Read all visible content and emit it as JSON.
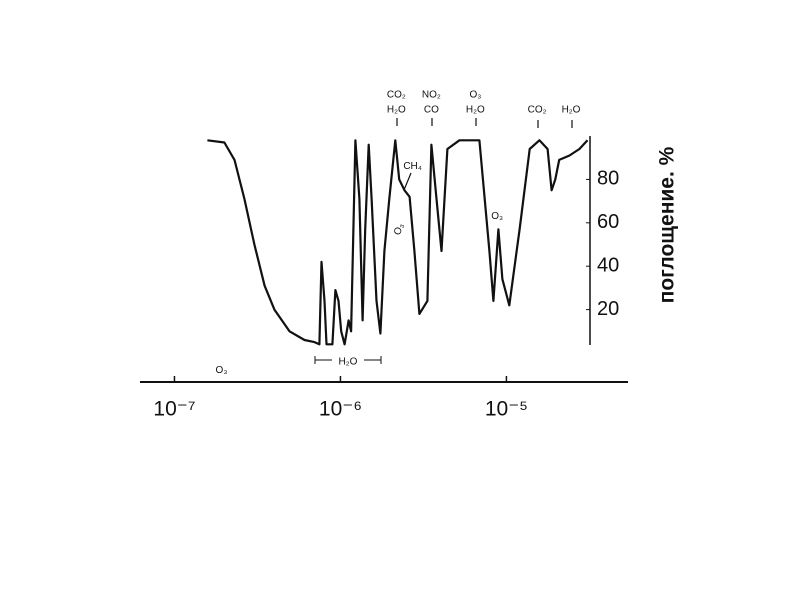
{
  "chart_data": {
    "type": "line",
    "y_label": "поглощение. %",
    "x_log": true,
    "xlim": [
      6.2e-08,
      5.4e-05
    ],
    "xticks": [
      {
        "value": 1e-07,
        "label": "10⁻⁷"
      },
      {
        "value": 1e-06,
        "label": "10⁻⁶"
      },
      {
        "value": 1e-05,
        "label": "10⁻⁵"
      }
    ],
    "ylim": [
      0,
      100
    ],
    "yticks": [
      20,
      40,
      60,
      80
    ],
    "grid": false,
    "color": "#111111",
    "series": [
      {
        "x": [
          1.58e-07,
          2e-07,
          2.3e-07,
          2.64e-07,
          3.03e-07,
          3.49e-07,
          4e-07,
          4.93e-07,
          6.07e-07,
          6.97e-07,
          7.47e-07,
          7.69e-07,
          8.01e-07,
          8.24e-07,
          8.95e-07,
          9.33e-07,
          9.73e-07,
          1.01e-06,
          1.06e-06,
          1.12e-06,
          1.16e-06,
          1.23e-06,
          1.3e-06,
          1.36e-06,
          1.41e-06,
          1.48e-06,
          1.54e-06,
          1.65e-06,
          1.74e-06,
          1.84e-06,
          1.97e-06,
          2.14e-06,
          2.26e-06,
          2.43e-06,
          2.61e-06,
          2.79e-06,
          2.99e-06,
          3.34e-06,
          3.53e-06,
          3.79e-06,
          4.06e-06,
          4.41e-06,
          5.21e-06,
          6.87e-06,
          7.9e-06,
          8.35e-06,
          8.95e-06,
          9.46e-06,
          1.04e-05,
          1.2e-05,
          1.38e-05,
          1.58e-05,
          1.77e-05,
          1.87e-05,
          1.97e-05,
          2.08e-05,
          2.4e-05,
          2.75e-05,
          3.08e-05
        ],
        "values": [
          98,
          97,
          89,
          71,
          50,
          31,
          20,
          10,
          6,
          5,
          4,
          42,
          24,
          4,
          4,
          29,
          24,
          10,
          4,
          15,
          10,
          98,
          71,
          15,
          57,
          96,
          71,
          24,
          9,
          47,
          71,
          98,
          80,
          75,
          72,
          47,
          18,
          24,
          96,
          71,
          47,
          94,
          98,
          98,
          47,
          24,
          57,
          34,
          22,
          57,
          94,
          98,
          94,
          75,
          80,
          89,
          91,
          94,
          98
        ]
      }
    ],
    "annotations": [
      {
        "text": "O₃",
        "x": 1.92e-07,
        "y": -8
      },
      {
        "text": "H₂O",
        "x": 1.11e-06,
        "y": -4
      },
      {
        "text": "CO₂",
        "x": 2.17e-06,
        "y": 119
      },
      {
        "text": "H₂O",
        "x": 2.17e-06,
        "y": 112
      },
      {
        "text": "NO₂",
        "x": 3.53e-06,
        "y": 119
      },
      {
        "text": "CO",
        "x": 3.53e-06,
        "y": 112
      },
      {
        "text": "O₃",
        "x": 6.5e-06,
        "y": 119
      },
      {
        "text": "H₂O",
        "x": 6.5e-06,
        "y": 112
      },
      {
        "text": "CO₂",
        "x": 1.53e-05,
        "y": 112
      },
      {
        "text": "H₂O",
        "x": 2.45e-05,
        "y": 112
      },
      {
        "text": "CH₄",
        "x": 2.72e-06,
        "y": 86
      },
      {
        "text": "O₃",
        "x": 2.26e-06,
        "y": 57
      },
      {
        "text": "O₃",
        "x": 8.8e-06,
        "y": 63
      }
    ]
  }
}
